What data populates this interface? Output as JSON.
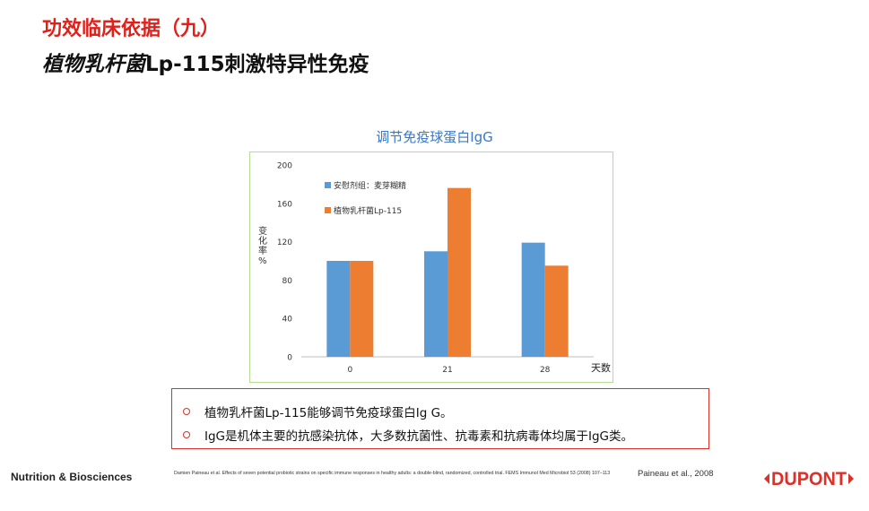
{
  "slide": {
    "title_line1": "功效临床依据（九）",
    "title_line2_italic": "植物乳杆菌",
    "title_line2_rest": "Lp-115刺激特异性免疫"
  },
  "chart_data": {
    "type": "bar",
    "title": "调节免疫球蛋白IgG",
    "ylabel": "变化率%",
    "xlabel": "天数",
    "categories": [
      "0",
      "21",
      "28"
    ],
    "ylim": [
      0,
      200
    ],
    "yticks": [
      0,
      40,
      80,
      120,
      160,
      200
    ],
    "series": [
      {
        "name": "安慰剂组：麦芽糊精",
        "color": "#5b9bd5",
        "values": [
          100,
          110,
          119
        ]
      },
      {
        "name": "植物乳杆菌Lp-115",
        "color": "#ed7d31",
        "values": [
          100,
          176,
          95
        ]
      }
    ],
    "legend_placement": "top-left",
    "grid": false
  },
  "bullets": [
    "植物乳杆菌Lp-115能够调节免疫球蛋白Ig G。",
    "IgG是机体主要的抗感染抗体，大多数抗菌性、抗毒素和抗病毒体均属于IgG类。"
  ],
  "footer": {
    "company": "Nutrition & Biosciences",
    "reference": "Damien Paineau et al. Effects of seven potential probiotic strains on specific immune responses in healthy adults: a double-blind, randomized, controlled trial. FEMS Immunol Med Microbiol 53 (2008) 107–113",
    "citation": "Paineau et al., 2008",
    "logo_text": "DUPONT"
  },
  "colors": {
    "title_red": "#e0201b",
    "chart_title_blue": "#3a77c4",
    "chart_border_green": "#b6db92",
    "bullet_border_red": "#d9322b",
    "logo_red": "#d9322b"
  }
}
